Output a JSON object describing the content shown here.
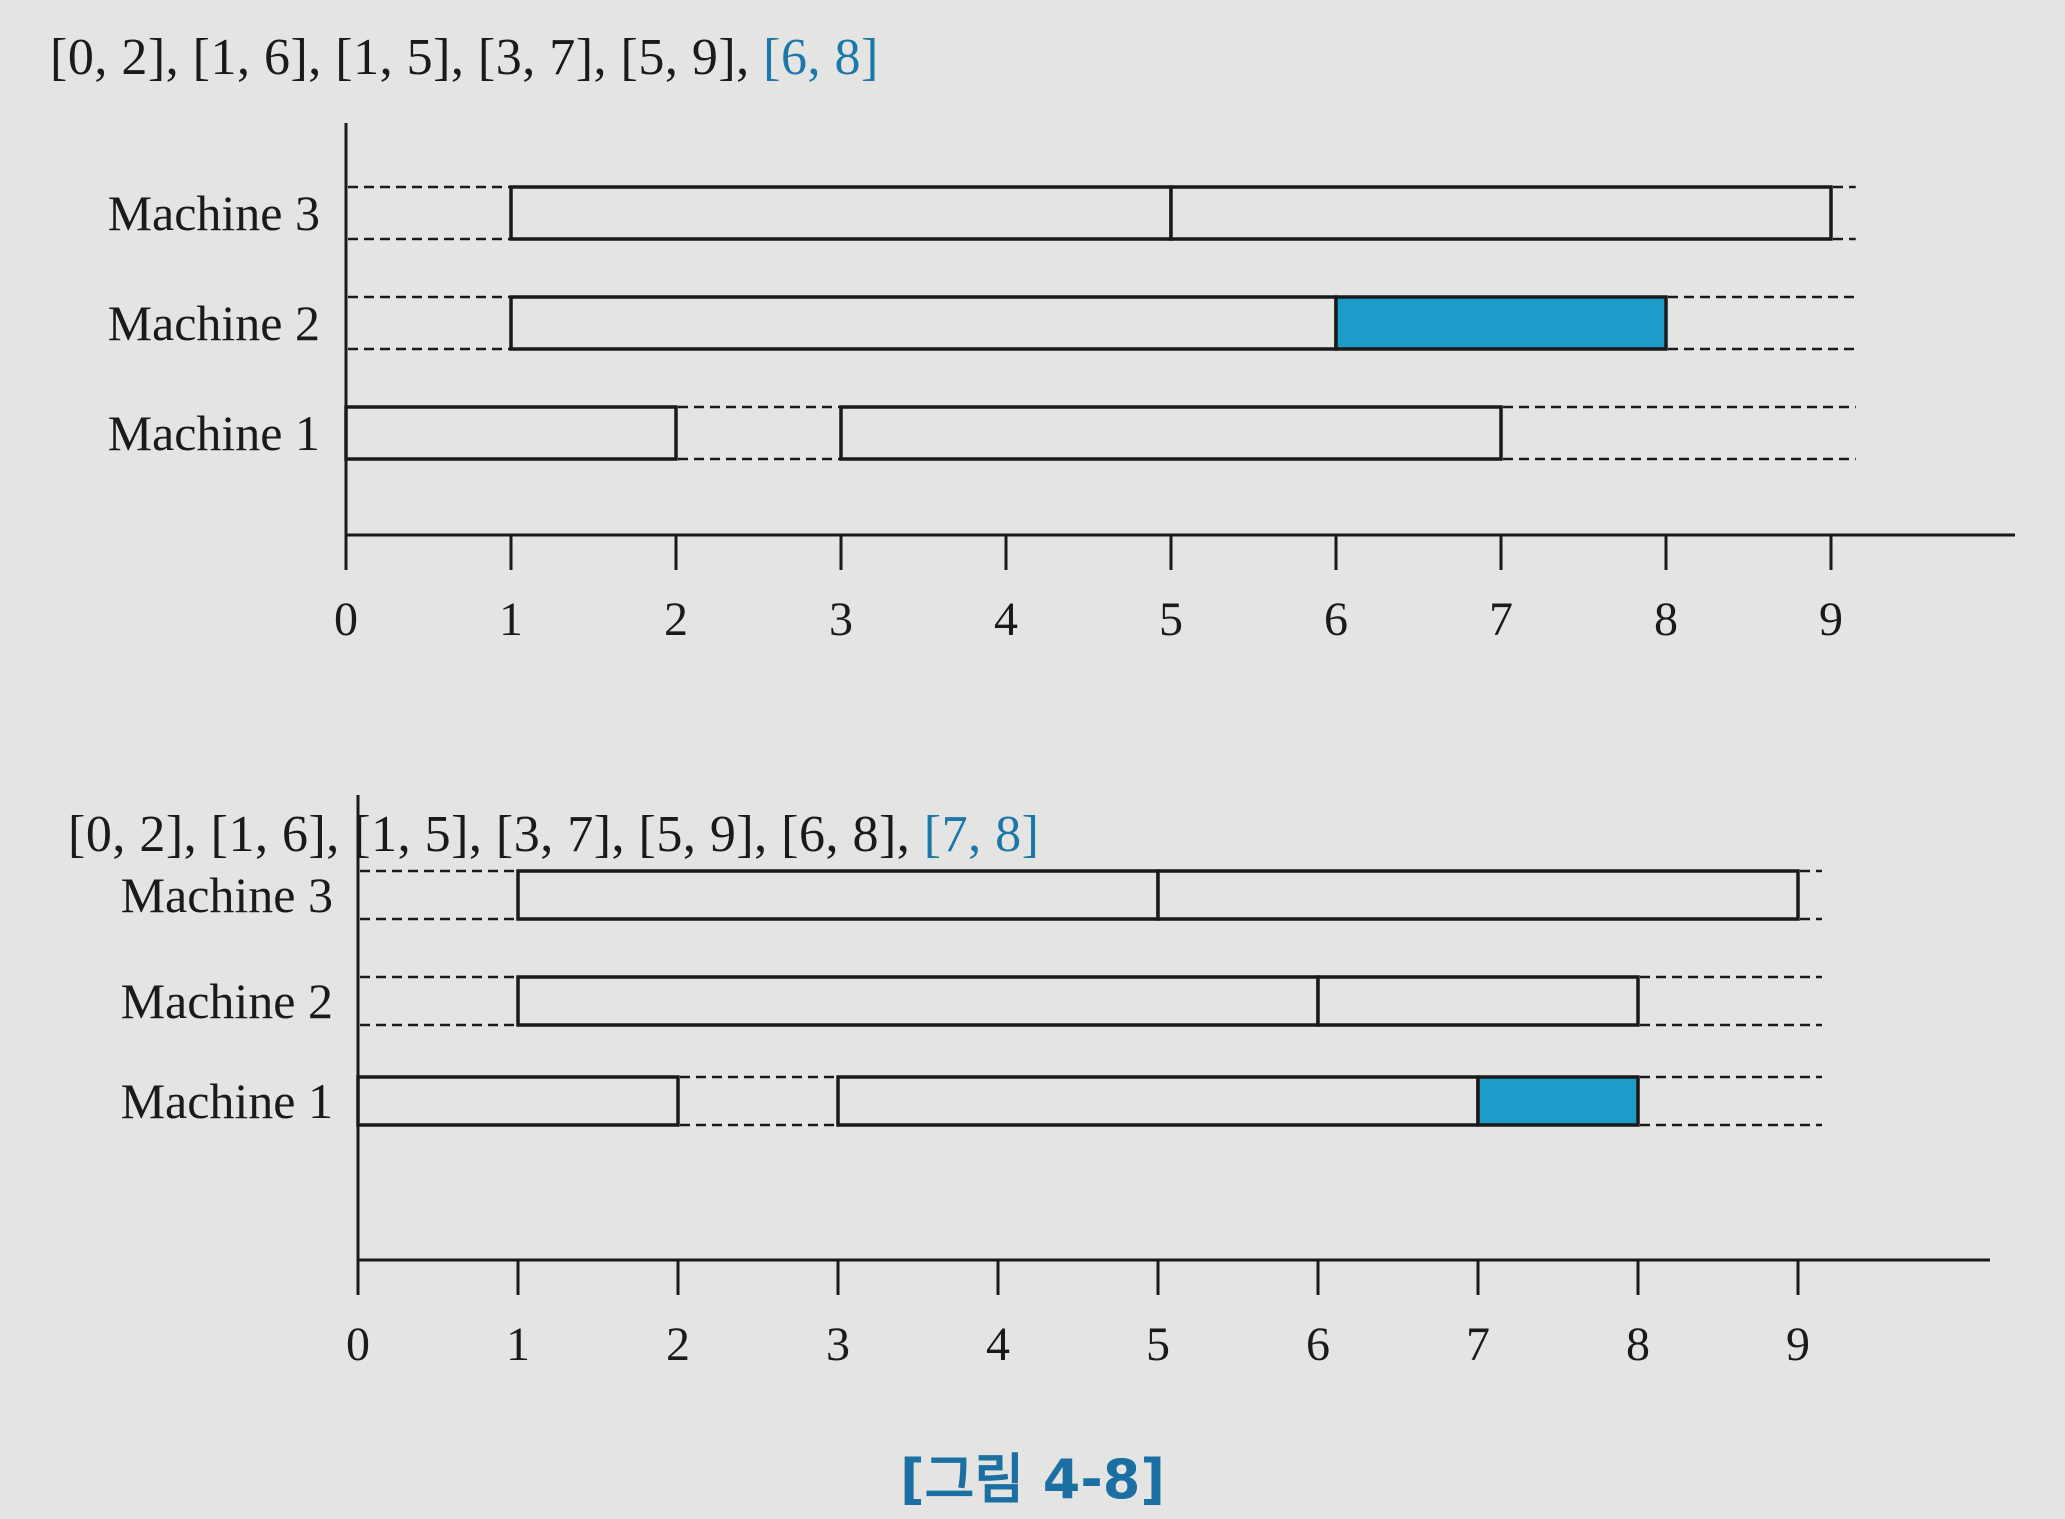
{
  "figures": [
    {
      "intervals": [
        "[0, 2]",
        "[1, 6]",
        "[1, 5]",
        "[3, 7]",
        "[5, 9]"
      ],
      "new_interval": "[6, 8]",
      "machines": [
        {
          "label": "Machine 3",
          "jobs": [
            {
              "start": 1,
              "end": 5
            },
            {
              "start": 5,
              "end": 9
            }
          ],
          "dashes": [
            [
              0,
              1
            ],
            [
              9,
              9.15
            ]
          ]
        },
        {
          "label": "Machine 2",
          "jobs": [
            {
              "start": 1,
              "end": 6
            },
            {
              "start": 6,
              "end": 8,
              "highlight": true
            }
          ],
          "dashes": [
            [
              0,
              1
            ],
            [
              8,
              9.15
            ]
          ]
        },
        {
          "label": "Machine 1",
          "jobs": [
            {
              "start": 0,
              "end": 2
            },
            {
              "start": 3,
              "end": 7
            }
          ],
          "dashes": [
            [
              2,
              3
            ],
            [
              7,
              9.15
            ]
          ]
        }
      ],
      "ticks": [
        "0",
        "1",
        "2",
        "3",
        "4",
        "5",
        "6",
        "7",
        "8",
        "9"
      ]
    },
    {
      "intervals": [
        "[0, 2]",
        "[1, 6]",
        "[1, 5]",
        "[3, 7]",
        "[5, 9]",
        "[6, 8]"
      ],
      "new_interval": "[7, 8]",
      "machines": [
        {
          "label": "Machine 3",
          "jobs": [
            {
              "start": 1,
              "end": 5
            },
            {
              "start": 5,
              "end": 9
            }
          ],
          "dashes": [
            [
              0,
              1
            ],
            [
              9,
              9.15
            ]
          ]
        },
        {
          "label": "Machine 2",
          "jobs": [
            {
              "start": 1,
              "end": 6
            },
            {
              "start": 6,
              "end": 8
            }
          ],
          "dashes": [
            [
              0,
              1
            ],
            [
              8,
              9.15
            ]
          ]
        },
        {
          "label": "Machine 1",
          "jobs": [
            {
              "start": 0,
              "end": 2
            },
            {
              "start": 3,
              "end": 7
            },
            {
              "start": 7,
              "end": 8,
              "highlight": true
            }
          ],
          "dashes": [
            [
              2,
              3
            ],
            [
              8,
              9.15
            ]
          ]
        }
      ],
      "ticks": [
        "0",
        "1",
        "2",
        "3",
        "4",
        "5",
        "6",
        "7",
        "8",
        "9"
      ]
    }
  ],
  "caption": "[그림 4-8]",
  "colors": {
    "highlight": "#1d9bc9",
    "highlight_text": "#1b78a8",
    "ink": "#1a1a1a",
    "bar_fill": "#e4e5e3"
  }
}
